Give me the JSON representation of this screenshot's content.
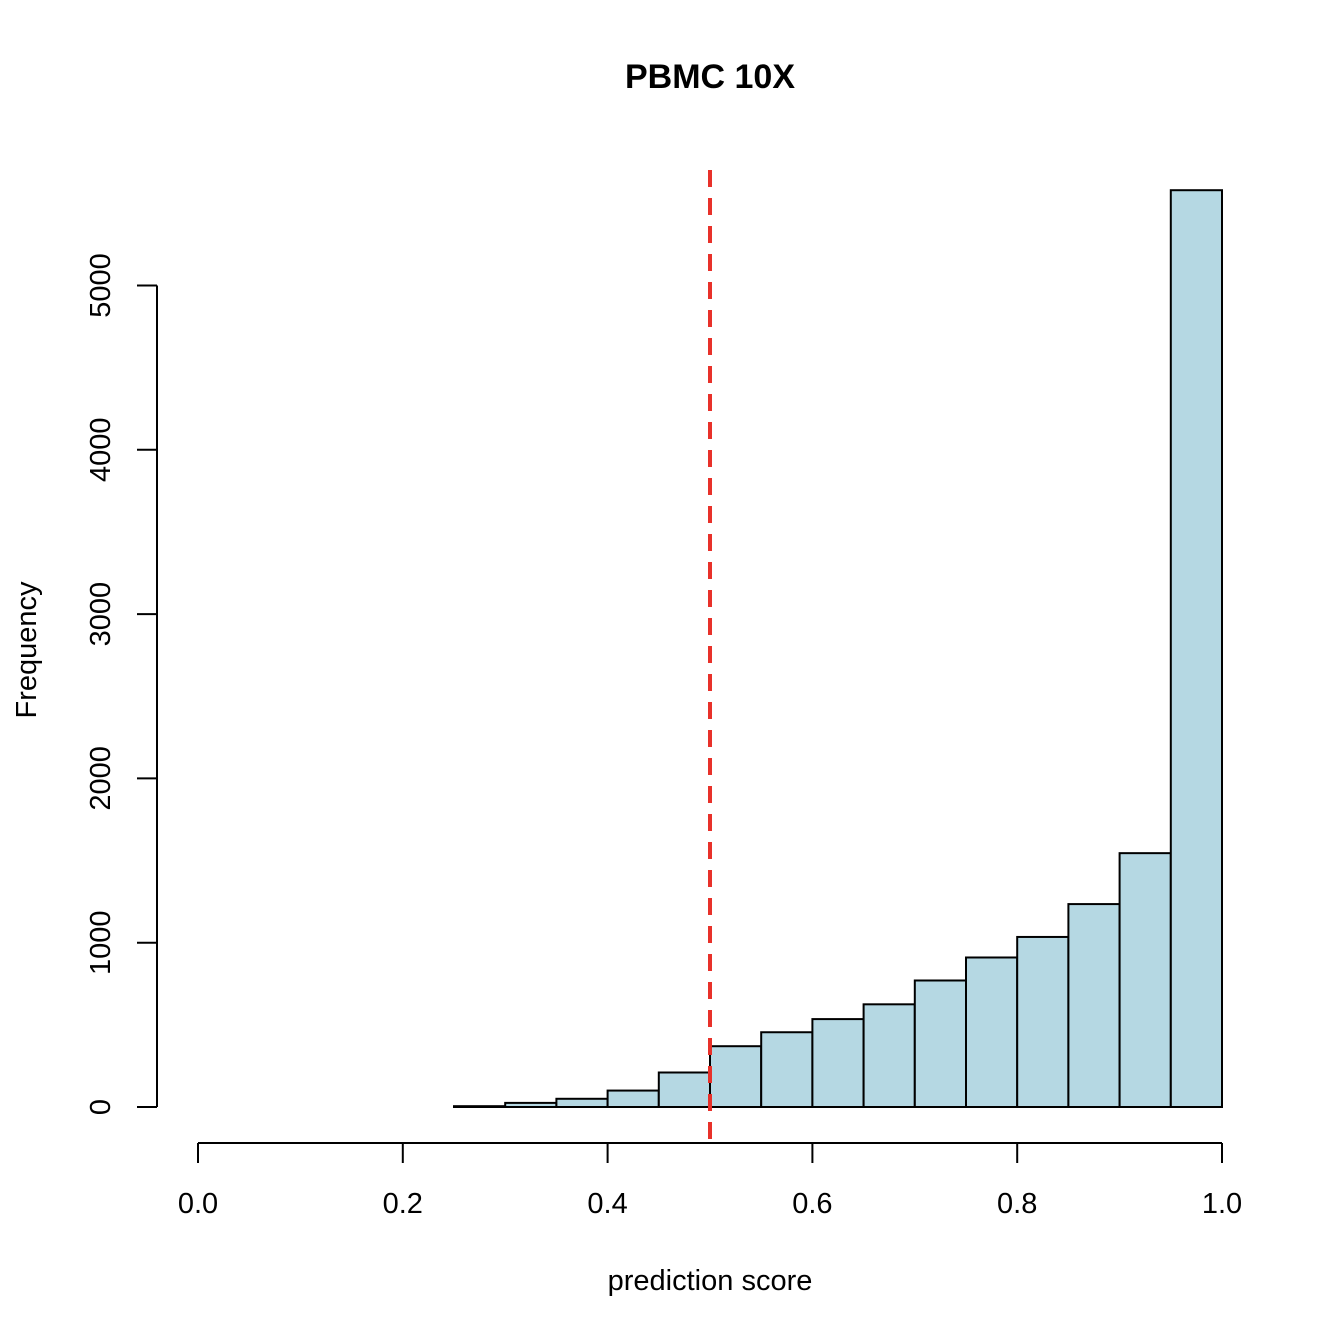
{
  "chart_data": {
    "type": "bar",
    "title": "PBMC 10X",
    "xlabel": "prediction score",
    "ylabel": "Frequency",
    "xlim": [
      0,
      1
    ],
    "ylim": [
      0,
      5600
    ],
    "x_ticks": [
      "0.0",
      "0.2",
      "0.4",
      "0.6",
      "0.8",
      "1.0"
    ],
    "y_ticks": [
      "0",
      "1000",
      "2000",
      "3000",
      "4000",
      "5000"
    ],
    "bin_width": 0.05,
    "bins": [
      {
        "start": 0.25,
        "end": 0.3,
        "value": 5
      },
      {
        "start": 0.3,
        "end": 0.35,
        "value": 25
      },
      {
        "start": 0.35,
        "end": 0.4,
        "value": 50
      },
      {
        "start": 0.4,
        "end": 0.45,
        "value": 100
      },
      {
        "start": 0.45,
        "end": 0.5,
        "value": 210
      },
      {
        "start": 0.5,
        "end": 0.55,
        "value": 370
      },
      {
        "start": 0.55,
        "end": 0.6,
        "value": 455
      },
      {
        "start": 0.6,
        "end": 0.65,
        "value": 535
      },
      {
        "start": 0.65,
        "end": 0.7,
        "value": 625
      },
      {
        "start": 0.7,
        "end": 0.75,
        "value": 770
      },
      {
        "start": 0.75,
        "end": 0.8,
        "value": 910
      },
      {
        "start": 0.8,
        "end": 0.85,
        "value": 1035
      },
      {
        "start": 0.85,
        "end": 0.9,
        "value": 1235
      },
      {
        "start": 0.9,
        "end": 0.95,
        "value": 1545
      },
      {
        "start": 0.95,
        "end": 1.0,
        "value": 5580
      }
    ],
    "threshold": 0.5,
    "threshold_style": "dashed",
    "grid": false,
    "legend": "none"
  },
  "colors": {
    "bar_fill": "#b5d8e3",
    "bar_stroke": "#000000",
    "threshold_line": "#e8312a",
    "axis": "#000000"
  }
}
